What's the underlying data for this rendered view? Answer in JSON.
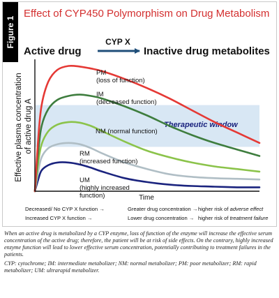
{
  "figure": {
    "tab_label": "Figure 1",
    "title": "Effect of CYP450 Polymorphism on Drug Metabolism"
  },
  "colors": {
    "pm": "#e53935",
    "im": "#3e7d3e",
    "nm": "#8bc34a",
    "rm": "#b0bec5",
    "um": "#1a237e",
    "window": "#d8e7f4",
    "arrow": "#1f4e79"
  },
  "chart_data": {
    "type": "line",
    "title": "",
    "xlabel": "Time",
    "ylabel": "Effective plasma concentration of active drug A",
    "xlim": [
      0,
      100
    ],
    "ylim": [
      0,
      100
    ],
    "header": {
      "left": "Active drug",
      "arrow_label": "CYP X",
      "right": "Inactive drug  metabolites"
    },
    "window_label": "Therapeutic window",
    "window_range": [
      34,
      66
    ],
    "series": [
      {
        "key": "pm",
        "label_lines": [
          "PM",
          "(loss of function)"
        ],
        "x": [
          0,
          1.5,
          3,
          6,
          10,
          15,
          20,
          25,
          30,
          40,
          50,
          60,
          70,
          80,
          90,
          100
        ],
        "y": [
          0,
          40,
          66,
          84,
          93,
          96,
          95.5,
          94,
          92,
          86,
          79,
          71,
          62,
          53,
          45,
          37
        ]
      },
      {
        "key": "im",
        "label_lines": [
          "IM",
          "(decreased function)"
        ],
        "x": [
          0,
          1.5,
          3,
          6,
          10,
          15,
          20,
          25,
          30,
          40,
          50,
          60,
          70,
          80,
          90,
          100
        ],
        "y": [
          0,
          30,
          50,
          63,
          70,
          73,
          74,
          73,
          71,
          65,
          58,
          50,
          43,
          37,
          32,
          27
        ]
      },
      {
        "key": "nm",
        "label_lines": [
          "NM (normal function)"
        ],
        "x": [
          0,
          1.5,
          3,
          6,
          10,
          15,
          20,
          25,
          30,
          40,
          50,
          60,
          70,
          80,
          90,
          100
        ],
        "y": [
          0,
          22,
          36,
          46,
          51,
          53,
          52.5,
          50,
          46,
          38,
          31,
          26,
          22,
          19,
          17,
          15
        ]
      },
      {
        "key": "rm",
        "label_lines": [
          "RM",
          "(increased function)"
        ],
        "x": [
          0,
          1.5,
          3,
          6,
          10,
          15,
          20,
          25,
          30,
          40,
          50,
          60,
          70,
          80,
          90,
          100
        ],
        "y": [
          0,
          15,
          26,
          33,
          36,
          37,
          36,
          33,
          29,
          22,
          17,
          13,
          11,
          10,
          9.5,
          9
        ]
      },
      {
        "key": "um",
        "label_lines": [
          "UM",
          "(highly increased",
          "function)"
        ],
        "x": [
          0,
          1.5,
          3,
          6,
          10,
          15,
          20,
          25,
          30,
          40,
          50,
          60,
          70,
          80,
          90,
          100
        ],
        "y": [
          0,
          9,
          16,
          20,
          22,
          22,
          20.5,
          18,
          15,
          10,
          7,
          5,
          4,
          3.5,
          3,
          3
        ]
      }
    ],
    "footnote_rows": [
      {
        "condition": "Decreased/ No CYP X function",
        "result": "Greater drug concentration",
        "risk_prefix": "higher risk of ",
        "risk_emph": "adverse effect"
      },
      {
        "condition": "Increased CYP X function",
        "result": "Lower drug concentration",
        "risk_prefix": "higher risk of ",
        "risk_emph": "treatment failure"
      }
    ]
  },
  "notes": {
    "paragraph": "When an active drug is metabolized by a CYP enzyme, loss of function of the enzyme will increase the effective serum concentration of the active drug; therefore, the patient will be at risk of side effects. On the contrary, highly increased enzyme function will lead to lower effective serum concentration, potentially contributing to treatment failures in the patients.",
    "abbreviations": "CYP: cytochrome; IM: intermediate metabolizer; NM: normal metabolizer; PM: poor metabolizer; RM: rapid metabolizer; UM: ultrarapid metabolizer."
  }
}
